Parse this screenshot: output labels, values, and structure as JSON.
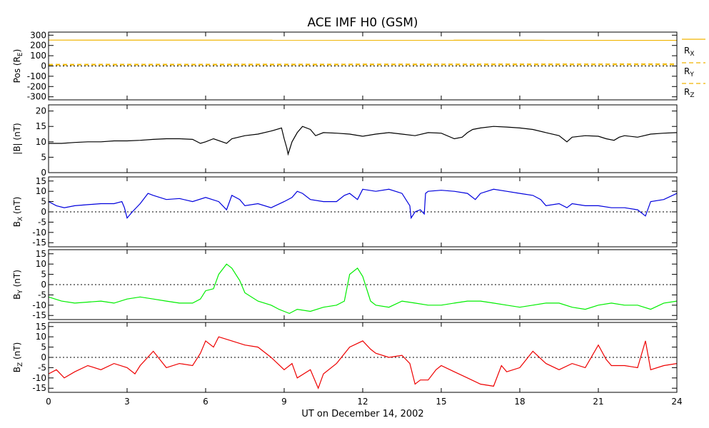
{
  "chart_data": {
    "type": "line",
    "title": "ACE IMF H0 (GSM)",
    "xlabel": "UT on December 14, 2002",
    "xlim": [
      0,
      24
    ],
    "xticks": [
      "0",
      "3",
      "6",
      "9",
      "12",
      "15",
      "18",
      "21",
      "24"
    ],
    "colors": {
      "pos_x": "#f0b400",
      "pos_y": "#f0b400",
      "pos_z": "#f0b400",
      "bmag": "#000000",
      "bx": "#0000dd",
      "by": "#00ee00",
      "bz": "#ee0000"
    },
    "panels": [
      {
        "key": "pos",
        "ylabel": "Pos (R",
        "ylabel_sub": "E",
        "ylabel_end": ")",
        "ylim": [
          -330,
          330
        ],
        "yticks": [
          "300",
          "200",
          "100",
          "0",
          "-100",
          "-200",
          "-300"
        ],
        "zero_line": true,
        "legend": [
          {
            "text": "R",
            "sub": "X"
          },
          {
            "text": "R",
            "sub": "Y"
          },
          {
            "text": "R",
            "sub": "Z"
          }
        ],
        "series": [
          {
            "name": "RX",
            "color": "#f0b400",
            "x": [
              0,
              24
            ],
            "y": [
              252,
              250
            ]
          },
          {
            "name": "RY",
            "color": "#f0b400",
            "x": [
              0,
              24
            ],
            "y": [
              16,
              20
            ]
          },
          {
            "name": "RZ",
            "color": "#f0b400",
            "x": [
              0,
              24
            ],
            "y": [
              10,
              12
            ]
          }
        ]
      },
      {
        "key": "bmag",
        "ylabel": "|B| (nT)",
        "ylim": [
          0,
          22
        ],
        "yticks": [
          "20",
          "15",
          "10",
          "5",
          "0"
        ],
        "zero_line": false,
        "series": [
          {
            "name": "|B|",
            "color": "#000000",
            "x": [
              0,
              0.5,
              1,
              1.5,
              2,
              2.5,
              3,
              3.5,
              4,
              4.5,
              5,
              5.5,
              5.8,
              6,
              6.3,
              6.8,
              7,
              7.5,
              8,
              8.5,
              8.9,
              9,
              9.1,
              9.15,
              9.3,
              9.5,
              9.7,
              10,
              10.2,
              10.5,
              11,
              11.5,
              12,
              12.5,
              13,
              13.5,
              14,
              14.5,
              15,
              15.5,
              15.8,
              16,
              16.2,
              16.5,
              17,
              17.5,
              18,
              18.5,
              19,
              19.5,
              19.8,
              20,
              20.5,
              21,
              21.3,
              21.6,
              21.8,
              22,
              22.5,
              23,
              23.5,
              24
            ],
            "y": [
              9.5,
              9.5,
              9.8,
              10,
              10,
              10.3,
              10.3,
              10.5,
              10.8,
              11,
              11,
              10.8,
              9.5,
              10,
              11,
              9.5,
              11,
              12,
              12.5,
              13.5,
              14.5,
              11,
              8,
              6,
              10,
              13,
              15,
              14,
              12,
              13,
              12.8,
              12.5,
              11.8,
              12.5,
              13,
              12.5,
              12,
              13,
              12.8,
              11,
              11.5,
              13,
              14,
              14.5,
              15,
              14.8,
              14.5,
              14,
              13,
              12,
              10,
              11.5,
              12,
              11.8,
              11,
              10.5,
              11.5,
              12,
              11.5,
              12.5,
              12.8,
              13
            ]
          }
        ]
      },
      {
        "key": "bx",
        "ylabel": "B",
        "ylabel_sub": "X",
        "ylabel_end": " (nT)",
        "ylim": [
          -17,
          17
        ],
        "yticks": [
          "15",
          "10",
          "5",
          "0",
          "-5",
          "-10",
          "-15"
        ],
        "zero_line": true,
        "series": [
          {
            "name": "BX",
            "color": "#0000dd",
            "x": [
              0,
              0.3,
              0.6,
              1,
              1.5,
              2,
              2.5,
              2.8,
              2.9,
              3,
              3.2,
              3.5,
              3.8,
              4,
              4.5,
              5,
              5.5,
              6,
              6.5,
              6.8,
              7,
              7.3,
              7.5,
              8,
              8.5,
              9,
              9.3,
              9.5,
              9.7,
              10,
              10.5,
              11,
              11.3,
              11.5,
              11.8,
              12,
              12.5,
              13,
              13.5,
              13.8,
              13.85,
              14,
              14.2,
              14.35,
              14.4,
              14.5,
              15,
              15.5,
              16,
              16.3,
              16.5,
              17,
              17.5,
              18,
              18.5,
              18.8,
              19,
              19.5,
              19.8,
              20,
              20.5,
              21,
              21.5,
              22,
              22.5,
              22.8,
              23,
              23.5,
              24
            ],
            "y": [
              5,
              3,
              2,
              3,
              3.5,
              4,
              4,
              5,
              2,
              -3,
              0,
              4,
              9,
              8,
              6,
              6.5,
              5,
              7,
              5,
              1,
              8,
              6,
              3,
              4,
              2,
              5,
              7,
              10,
              9,
              6,
              5,
              5,
              8,
              9,
              6,
              11,
              10,
              11,
              9,
              3,
              -3,
              0,
              1,
              -1,
              9,
              10,
              10.5,
              10,
              9,
              6,
              9,
              11,
              10,
              9,
              8,
              6,
              3,
              4,
              2,
              4,
              3,
              3,
              2,
              2,
              1,
              -2,
              5,
              6,
              9
            ]
          }
        ]
      },
      {
        "key": "by",
        "ylabel": "B",
        "ylabel_sub": "Y",
        "ylabel_end": " (nT)",
        "ylim": [
          -17,
          17
        ],
        "yticks": [
          "15",
          "10",
          "5",
          "0",
          "-5",
          "-10",
          "-15"
        ],
        "zero_line": true,
        "series": [
          {
            "name": "BY",
            "color": "#00ee00",
            "x": [
              0,
              0.5,
              1,
              1.5,
              2,
              2.5,
              3,
              3.5,
              4,
              4.5,
              5,
              5.5,
              5.8,
              6,
              6.3,
              6.5,
              6.8,
              7,
              7.3,
              7.5,
              8,
              8.5,
              8.8,
              9,
              9.2,
              9.5,
              10,
              10.5,
              11,
              11.3,
              11.5,
              11.8,
              12,
              12.3,
              12.5,
              13,
              13.5,
              14,
              14.5,
              15,
              15.5,
              16,
              16.5,
              17,
              17.5,
              18,
              18.5,
              19,
              19.5,
              20,
              20.5,
              21,
              21.5,
              22,
              22.5,
              23,
              23.5,
              24
            ],
            "y": [
              -6,
              -8,
              -9,
              -8.5,
              -8,
              -9,
              -7,
              -6,
              -7,
              -8,
              -9,
              -9,
              -7,
              -3,
              -2,
              5,
              10,
              8,
              2,
              -4,
              -8,
              -10,
              -12,
              -13,
              -14,
              -12,
              -13,
              -11,
              -10,
              -8,
              5,
              8,
              4,
              -8,
              -10,
              -11,
              -8,
              -9,
              -10,
              -10,
              -9,
              -8,
              -8,
              -9,
              -10,
              -11,
              -10,
              -9,
              -9,
              -11,
              -12,
              -10,
              -9,
              -10,
              -10,
              -12,
              -9,
              -8
            ]
          }
        ]
      },
      {
        "key": "bz",
        "ylabel": "B",
        "ylabel_sub": "Z",
        "ylabel_end": " (nT)",
        "ylim": [
          -17,
          17
        ],
        "yticks": [
          "15",
          "10",
          "5",
          "0",
          "-5",
          "-10",
          "-15"
        ],
        "zero_line": true,
        "series": [
          {
            "name": "BZ",
            "color": "#ee0000",
            "x": [
              0,
              0.3,
              0.6,
              1,
              1.5,
              2,
              2.5,
              3,
              3.3,
              3.5,
              4,
              4.5,
              5,
              5.5,
              5.8,
              6,
              6.3,
              6.5,
              7,
              7.5,
              8,
              8.5,
              9,
              9.3,
              9.5,
              10,
              10.3,
              10.5,
              11,
              11.5,
              12,
              12.3,
              12.5,
              13,
              13.5,
              13.8,
              14,
              14.2,
              14.5,
              14.8,
              15,
              15.5,
              16,
              16.5,
              17,
              17.3,
              17.5,
              18,
              18.5,
              19,
              19.5,
              20,
              20.5,
              21,
              21.3,
              21.5,
              22,
              22.5,
              22.8,
              23,
              23.5,
              24
            ],
            "y": [
              -8,
              -6,
              -10,
              -7,
              -4,
              -6,
              -3,
              -5,
              -8,
              -4,
              3,
              -5,
              -3,
              -4,
              2,
              8,
              5,
              10,
              8,
              6,
              5,
              0,
              -6,
              -3,
              -10,
              -6,
              -15,
              -8,
              -3,
              5,
              8,
              4,
              2,
              0,
              1,
              -3,
              -13,
              -11,
              -11,
              -6,
              -4,
              -7,
              -10,
              -13,
              -14,
              -4,
              -7,
              -5,
              3,
              -3,
              -6,
              -3,
              -5,
              6,
              -1,
              -4,
              -4,
              -5,
              8,
              -6,
              -4,
              -3
            ]
          }
        ]
      }
    ]
  }
}
